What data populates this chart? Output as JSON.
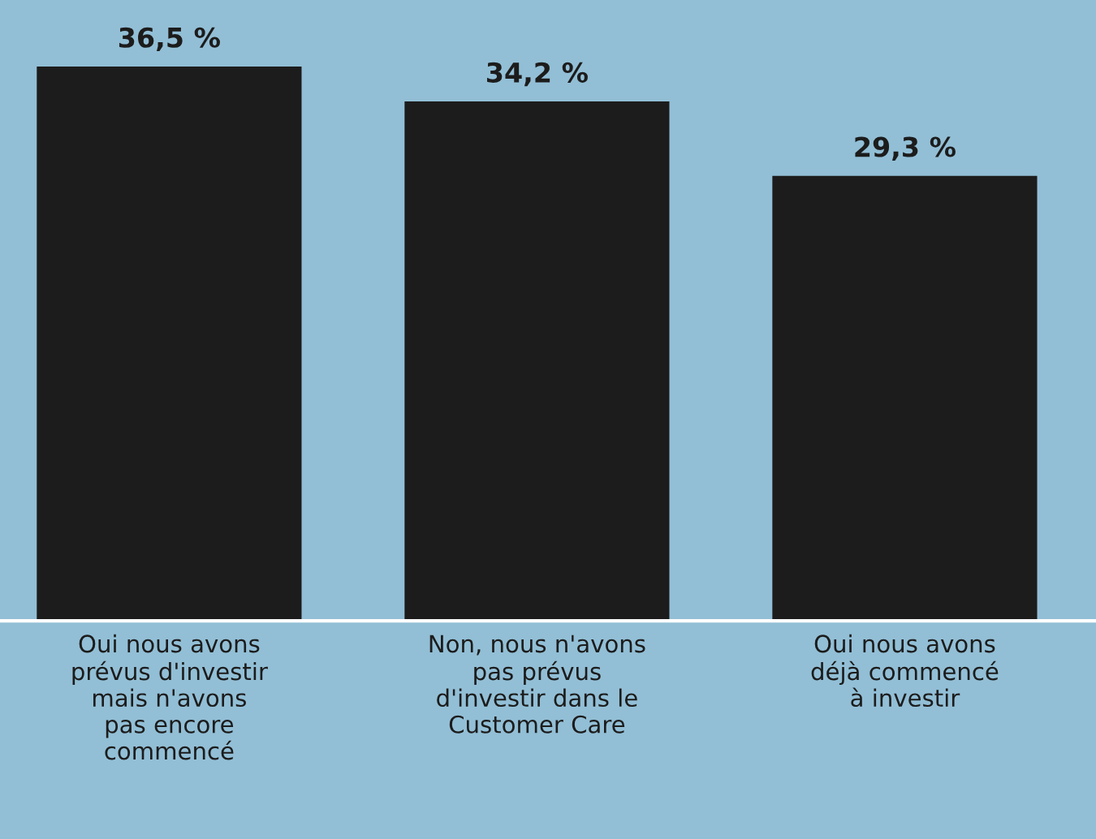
{
  "chart_data": {
    "type": "bar",
    "categories": [
      "Oui nous avons\nprévus d'investir\nmais n'avons\npas encore\ncommencé",
      "Non, nous n'avons\npas prévus\nd'investir dans le\nCustomer Care",
      "Oui nous avons\ndéjà commencé\nà investir"
    ],
    "values": [
      36.5,
      34.2,
      29.3
    ],
    "color": "#1c1c1c",
    "value_labels": [
      "36,5 %",
      "34,2 %",
      "29,3 %"
    ],
    "grid": false,
    "legend": false
  }
}
